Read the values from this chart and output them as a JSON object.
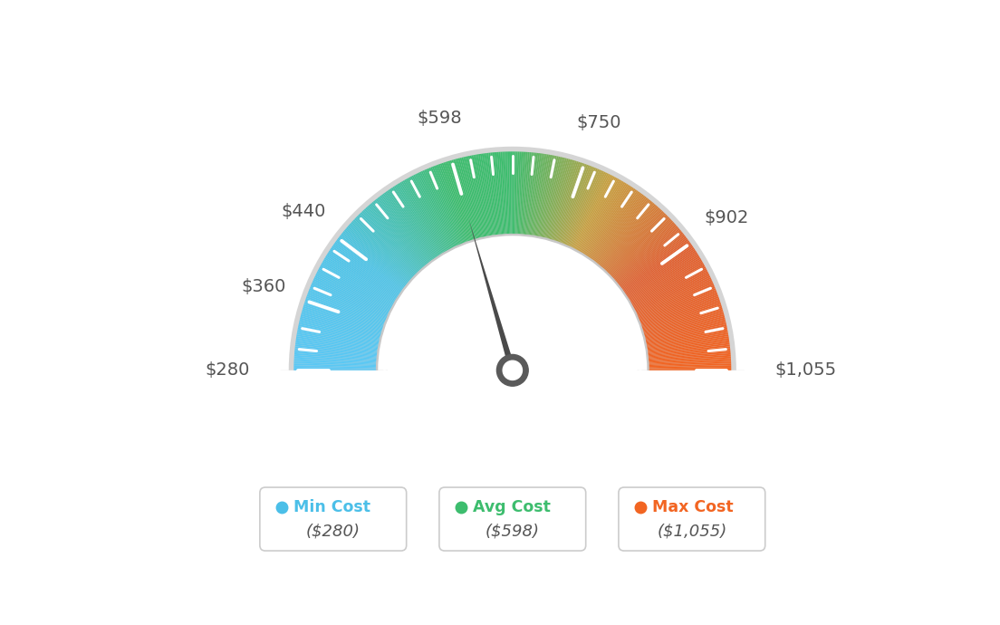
{
  "min_val": 280,
  "max_val": 1055,
  "avg_val": 598,
  "tick_values": [
    280,
    360,
    440,
    598,
    750,
    902,
    1055
  ],
  "legend_min_label": "Min Cost",
  "legend_avg_label": "Avg Cost",
  "legend_max_label": "Max Cost",
  "legend_min_val": "($280)",
  "legend_avg_val": "($598)",
  "legend_max_val": "($1,055)",
  "color_min": "#4bbfe8",
  "color_avg": "#3dbd6e",
  "color_max": "#f26522",
  "color_needle": "#555555",
  "background_color": "#ffffff",
  "color_stops": [
    [
      0.0,
      "#5bc8f5"
    ],
    [
      0.2,
      "#4dc4e8"
    ],
    [
      0.4,
      "#3dbd6e"
    ],
    [
      0.5,
      "#3dbd6e"
    ],
    [
      0.65,
      "#c8a040"
    ],
    [
      0.8,
      "#e06030"
    ],
    [
      1.0,
      "#f26522"
    ]
  ],
  "outer_r": 1.0,
  "inner_r": 0.62,
  "label_positions": [
    [
      280,
      "$280"
    ],
    [
      360,
      "$360"
    ],
    [
      440,
      "$440"
    ],
    [
      598,
      "$598"
    ],
    [
      750,
      "$750"
    ],
    [
      902,
      "$902"
    ],
    [
      1055,
      "$1,055"
    ]
  ]
}
